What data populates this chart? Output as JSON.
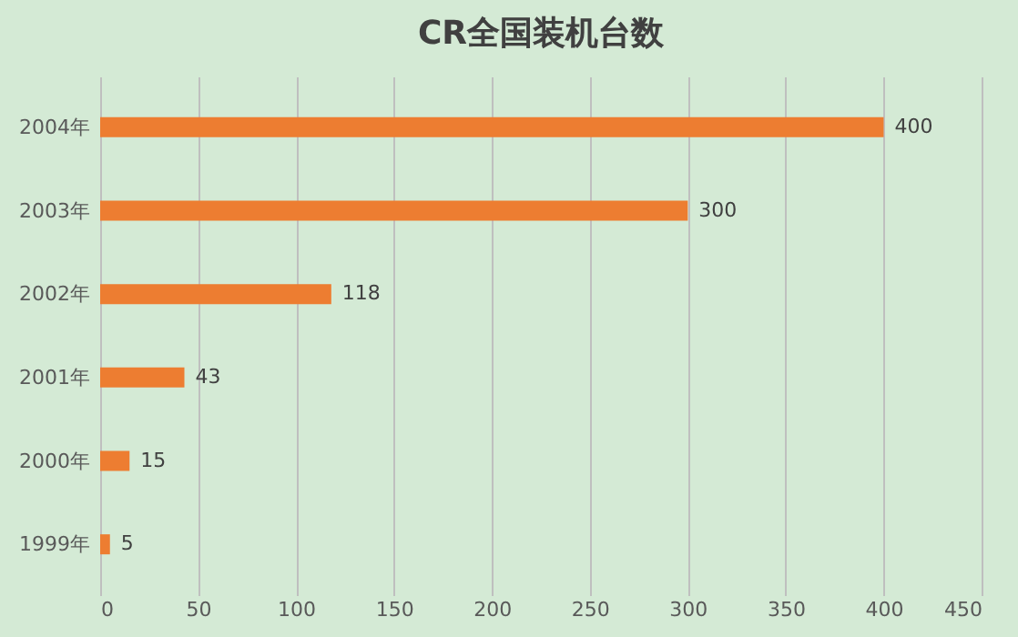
{
  "chart_data": {
    "type": "bar",
    "orientation": "horizontal",
    "title": "CR全国装机台数",
    "categories": [
      "2004年",
      "2003年",
      "2002年",
      "2001年",
      "2000年",
      "1999年"
    ],
    "values": [
      400,
      300,
      118,
      43,
      15,
      5
    ],
    "color": "#ed7d31",
    "xlim": [
      0,
      450
    ],
    "xticks": [
      0,
      50,
      100,
      150,
      200,
      250,
      300,
      350,
      400,
      450
    ],
    "grid": "x",
    "data_labels": true
  }
}
